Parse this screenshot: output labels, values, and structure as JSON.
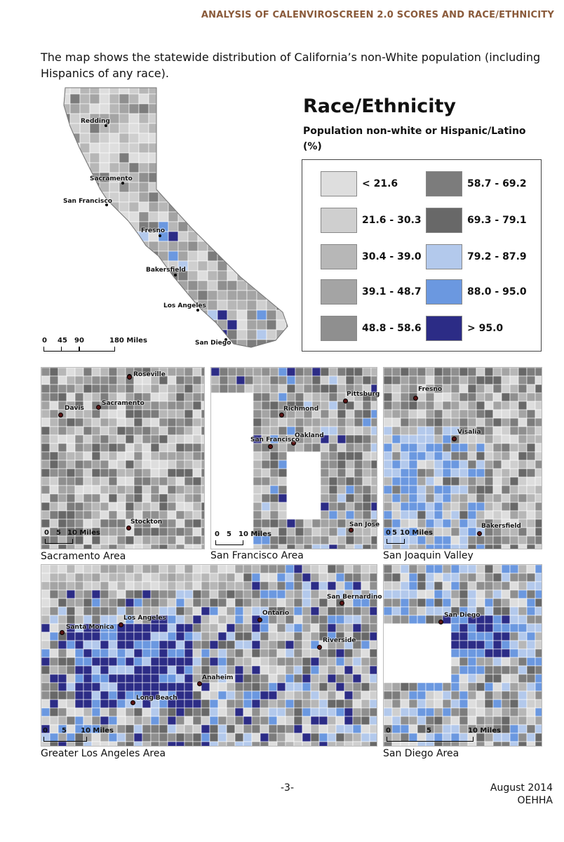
{
  "header": {
    "running_title": "ANALYSIS OF CALENVIROSCREEN 2.0 SCORES AND RACE/ETHNICITY"
  },
  "intro": {
    "text": "The map shows the statewide distribution of California’s non-White population (including Hispanics of any race)."
  },
  "legend": {
    "title": "Race/Ethnicity",
    "subtitle": "Population non-white or Hispanic/Latino (%)",
    "classes": [
      {
        "label": "< 21.6",
        "color": "#dedede"
      },
      {
        "label": "21.6 - 30.3",
        "color": "#cfcfcf"
      },
      {
        "label": "30.4 - 39.0",
        "color": "#b7b7b7"
      },
      {
        "label": "39.1 - 48.7",
        "color": "#a4a4a4"
      },
      {
        "label": "48.8 - 58.6",
        "color": "#8f8f8f"
      },
      {
        "label": "58.7 - 69.2",
        "color": "#7c7c7c"
      },
      {
        "label": "69.3 - 79.1",
        "color": "#686868"
      },
      {
        "label": "79.2 - 87.9",
        "color": "#b3c9ec"
      },
      {
        "label": "88.0 - 95.0",
        "color": "#6b98e0"
      },
      {
        "label": "> 95.0",
        "color": "#2c2c86"
      }
    ]
  },
  "statewide_map": {
    "cities": [
      "Redding",
      "Sacramento",
      "San Francisco",
      "Fresno",
      "Bakersfield",
      "Los Angeles",
      "San Diego"
    ],
    "scale": {
      "ticks": [
        "0",
        "45",
        "90",
        "180 Miles"
      ]
    }
  },
  "insets": [
    {
      "caption": "Sacramento Area",
      "cities": [
        "Roseville",
        "Davis",
        "Sacramento",
        "Stockton"
      ],
      "scale": {
        "ticks": [
          "0",
          "5",
          "10 Miles"
        ]
      }
    },
    {
      "caption": "San Francisco Area",
      "cities": [
        "Pittsburg",
        "Richmond",
        "Oakland",
        "San Francisco",
        "San Jose"
      ],
      "scale": {
        "ticks": [
          "0",
          "5",
          "10 Miles"
        ]
      }
    },
    {
      "caption": "San Joaquin Valley",
      "cities": [
        "Fresno",
        "Visalia",
        "Bakersfield"
      ],
      "scale": {
        "ticks": [
          "0",
          "5",
          "10 Miles"
        ]
      }
    },
    {
      "caption": "Greater Los Angeles Area",
      "cities": [
        "San Bernardino",
        "Ontario",
        "Santa Monica",
        "Los Angeles",
        "Riverside",
        "Anaheim",
        "Long Beach"
      ],
      "scale": {
        "ticks": [
          "0",
          "5",
          "10 Miles"
        ]
      }
    },
    {
      "caption": "San Diego Area",
      "cities": [
        "San Diego"
      ],
      "scale": {
        "ticks": [
          "0",
          "5",
          "10 Miles"
        ]
      }
    }
  ],
  "footer": {
    "page": "-3-",
    "date": "August 2014",
    "agency": "OEHHA"
  }
}
